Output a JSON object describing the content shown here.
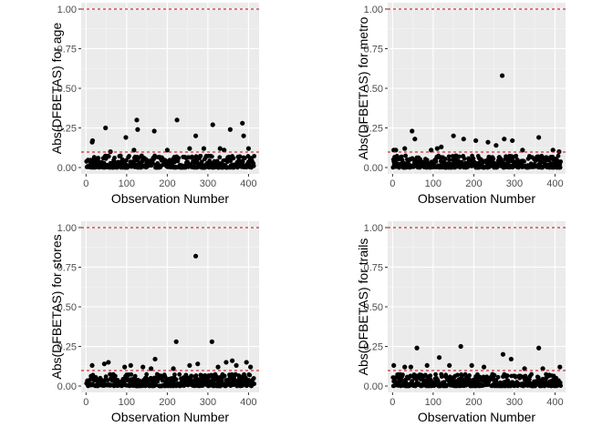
{
  "style": {
    "panel_bg": "#ebebeb",
    "grid_major": "#ffffff",
    "grid_minor": "#f5f5f5",
    "point_color": "#000000",
    "threshold_color": "#cc0000"
  },
  "chart_data": [
    {
      "type": "scatter",
      "title": "",
      "xlabel": "Observation Number",
      "ylabel": "Abs(DFBETAS) for  age",
      "xlim": [
        -12,
        426
      ],
      "ylim": [
        -0.04,
        1.04
      ],
      "xticks": [
        0,
        100,
        200,
        300,
        400
      ],
      "yticks": [
        0.0,
        0.25,
        0.5,
        0.75,
        1.0
      ],
      "ytick_labels": [
        "0.00",
        "0.25",
        "0.50",
        "0.75",
        "1.00"
      ],
      "grid": true,
      "hlines": [
        1.0,
        0.098
      ],
      "n_obs": 414,
      "highlights": [
        [
          15,
          0.16
        ],
        [
          16,
          0.17
        ],
        [
          48,
          0.25
        ],
        [
          98,
          0.19
        ],
        [
          125,
          0.3
        ],
        [
          127,
          0.24
        ],
        [
          168,
          0.23
        ],
        [
          224,
          0.3
        ],
        [
          270,
          0.2
        ],
        [
          290,
          0.12
        ],
        [
          312,
          0.27
        ],
        [
          355,
          0.24
        ],
        [
          385,
          0.28
        ],
        [
          388,
          0.2
        ],
        [
          118,
          0.11
        ],
        [
          60,
          0.1
        ],
        [
          200,
          0.11
        ],
        [
          340,
          0.11
        ],
        [
          255,
          0.12
        ],
        [
          330,
          0.12
        ],
        [
          400,
          0.12
        ]
      ]
    },
    {
      "type": "scatter",
      "title": "",
      "xlabel": "Observation Number",
      "ylabel": "Abs(DFBETAS) for  metro",
      "xlim": [
        -12,
        426
      ],
      "ylim": [
        -0.04,
        1.04
      ],
      "xticks": [
        0,
        100,
        200,
        300,
        400
      ],
      "yticks": [
        0.0,
        0.25,
        0.5,
        0.75,
        1.0
      ],
      "ytick_labels": [
        "0.00",
        "0.25",
        "0.50",
        "0.75",
        "1.00"
      ],
      "grid": true,
      "hlines": [
        1.0,
        0.098
      ],
      "n_obs": 414,
      "highlights": [
        [
          3,
          0.11
        ],
        [
          8,
          0.11
        ],
        [
          48,
          0.23
        ],
        [
          55,
          0.18
        ],
        [
          95,
          0.11
        ],
        [
          110,
          0.12
        ],
        [
          120,
          0.13
        ],
        [
          150,
          0.2
        ],
        [
          175,
          0.18
        ],
        [
          205,
          0.17
        ],
        [
          235,
          0.16
        ],
        [
          255,
          0.14
        ],
        [
          270,
          0.58
        ],
        [
          275,
          0.18
        ],
        [
          295,
          0.17
        ],
        [
          360,
          0.19
        ],
        [
          395,
          0.11
        ],
        [
          410,
          0.1
        ],
        [
          30,
          0.12
        ],
        [
          320,
          0.11
        ]
      ]
    },
    {
      "type": "scatter",
      "title": "",
      "xlabel": "Observation Number",
      "ylabel": "Abs(DFBETAS) for  stores",
      "xlim": [
        -12,
        426
      ],
      "ylim": [
        -0.04,
        1.04
      ],
      "xticks": [
        0,
        100,
        200,
        300,
        400
      ],
      "yticks": [
        0.0,
        0.25,
        0.5,
        0.75,
        1.0
      ],
      "ytick_labels": [
        "0.00",
        "0.25",
        "0.50",
        "0.75",
        "1.00"
      ],
      "grid": true,
      "hlines": [
        1.0,
        0.098
      ],
      "n_obs": 414,
      "highlights": [
        [
          15,
          0.13
        ],
        [
          45,
          0.14
        ],
        [
          55,
          0.15
        ],
        [
          95,
          0.12
        ],
        [
          140,
          0.12
        ],
        [
          160,
          0.11
        ],
        [
          170,
          0.17
        ],
        [
          215,
          0.11
        ],
        [
          222,
          0.28
        ],
        [
          255,
          0.13
        ],
        [
          270,
          0.82
        ],
        [
          275,
          0.14
        ],
        [
          310,
          0.28
        ],
        [
          325,
          0.12
        ],
        [
          345,
          0.15
        ],
        [
          360,
          0.16
        ],
        [
          370,
          0.13
        ],
        [
          395,
          0.15
        ],
        [
          405,
          0.12
        ],
        [
          110,
          0.13
        ]
      ]
    },
    {
      "type": "scatter",
      "title": "",
      "xlabel": "Observation Number",
      "ylabel": "Abs(DFBETAS) for  trails",
      "xlim": [
        -12,
        426
      ],
      "ylim": [
        -0.04,
        1.04
      ],
      "xticks": [
        0,
        100,
        200,
        300,
        400
      ],
      "yticks": [
        0.0,
        0.25,
        0.5,
        0.75,
        1.0
      ],
      "ytick_labels": [
        "0.00",
        "0.25",
        "0.50",
        "0.75",
        "1.00"
      ],
      "grid": true,
      "hlines": [
        1.0,
        0.098
      ],
      "n_obs": 414,
      "highlights": [
        [
          3,
          0.13
        ],
        [
          45,
          0.12
        ],
        [
          60,
          0.24
        ],
        [
          85,
          0.13
        ],
        [
          115,
          0.18
        ],
        [
          140,
          0.13
        ],
        [
          168,
          0.25
        ],
        [
          195,
          0.13
        ],
        [
          225,
          0.12
        ],
        [
          272,
          0.2
        ],
        [
          292,
          0.17
        ],
        [
          360,
          0.24
        ],
        [
          370,
          0.11
        ],
        [
          412,
          0.12
        ],
        [
          30,
          0.12
        ],
        [
          325,
          0.11
        ]
      ]
    }
  ]
}
